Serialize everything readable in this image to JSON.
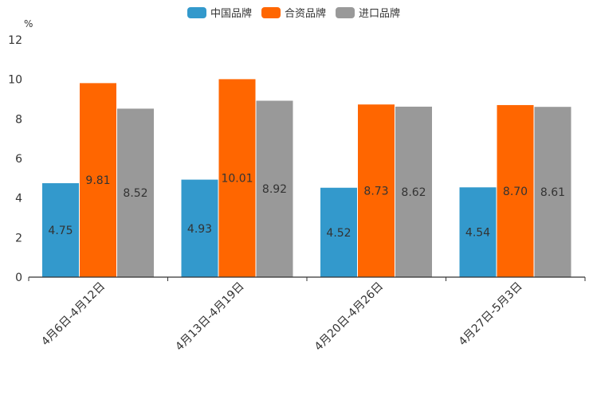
{
  "chart_data": {
    "type": "bar",
    "title": "",
    "ylabel": "%",
    "xlabel": "",
    "ylim": [
      0,
      12
    ],
    "yticks": [
      0,
      2,
      4,
      6,
      8,
      10,
      12
    ],
    "grid": false,
    "legend_position": "top-center",
    "categories": [
      "4月6日-4月12日",
      "4月13日-4月19日",
      "4月20日-4月26日",
      "4月27日-5月3日"
    ],
    "series": [
      {
        "name": "中国品牌",
        "color": "#3399cc",
        "values": [
          4.75,
          4.93,
          4.52,
          4.54
        ],
        "labels": [
          "4.75",
          "4.93",
          "4.52",
          "4.54"
        ]
      },
      {
        "name": "合资品牌",
        "color": "#ff6600",
        "values": [
          9.81,
          10.01,
          8.73,
          8.7
        ],
        "labels": [
          "9.81",
          "10.01",
          "8.73",
          "8.70"
        ]
      },
      {
        "name": "进口品牌",
        "color": "#999999",
        "values": [
          8.52,
          8.92,
          8.62,
          8.61
        ],
        "labels": [
          "8.52",
          "8.92",
          "8.62",
          "8.61"
        ]
      }
    ]
  }
}
